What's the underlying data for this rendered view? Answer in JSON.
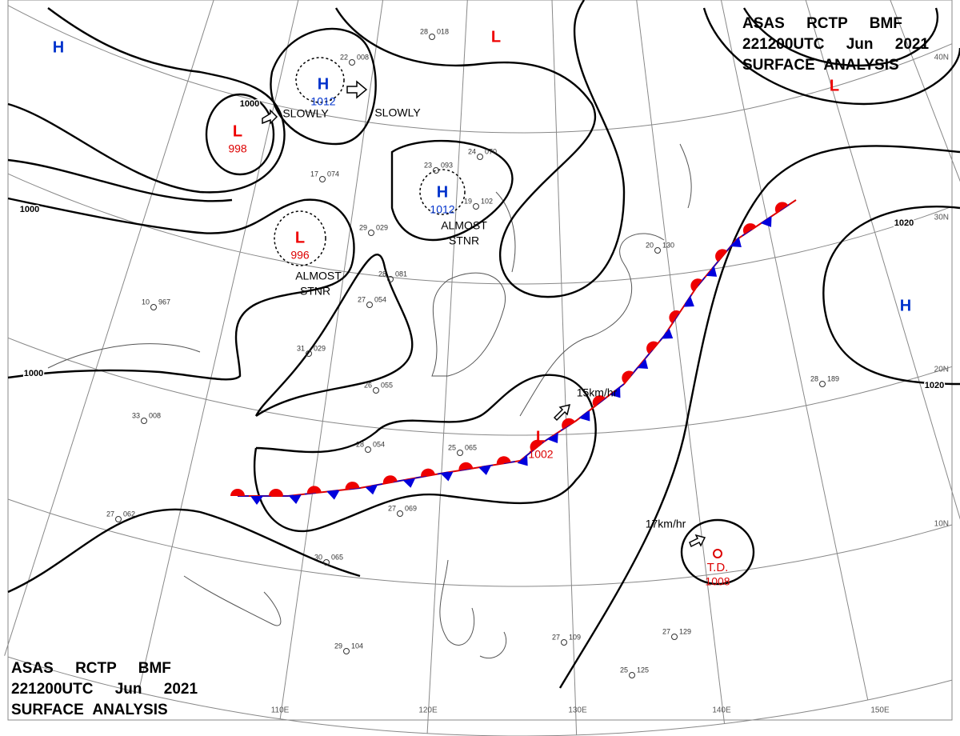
{
  "header_top": {
    "line1": "ASAS RCTP BMF",
    "line2": "221200UTC Jun 2021",
    "line3": "SURFACE ANALYSIS"
  },
  "header_bottom": {
    "line1": "ASAS RCTP BMF",
    "line2": "221200UTC Jun 2021",
    "line3": "SURFACE ANALYSIS"
  },
  "systems": [
    {
      "symbol": "H"
    },
    {
      "symbol": "L",
      "pressure": 998
    },
    {
      "symbol": "H",
      "pressure": 1012
    },
    {
      "symbol": "H",
      "pressure": 1012
    },
    {
      "symbol": "L",
      "pressure": 996
    },
    {
      "symbol": "L"
    },
    {
      "symbol": "L"
    },
    {
      "symbol": "H"
    },
    {
      "symbol": "L",
      "pressure": 1002
    },
    {
      "symbol": "T.D.",
      "pressure": 1008
    }
  ],
  "annotations": [
    "SLOWLY",
    "SLOWLY",
    "ALMOST",
    "STNR",
    "ALMOST",
    "STNR",
    "15km/hr",
    "17km/hr"
  ],
  "isobar_labels": [
    1000,
    1000,
    1000,
    1020,
    1020
  ],
  "latitudes": [
    "40N",
    "30N",
    "20N",
    "10N"
  ],
  "longitudes": [
    "110E",
    "120E",
    "130E",
    "140E",
    "150E"
  ],
  "stations": [
    {
      "temp": "28",
      "pres": "018"
    },
    {
      "temp": "22",
      "pres": "008"
    },
    {
      "temp": "24",
      "pres": "070"
    },
    {
      "temp": "23",
      "pres": "093"
    },
    {
      "temp": "19",
      "pres": "102"
    },
    {
      "temp": "17",
      "pres": "074"
    },
    {
      "temp": "29",
      "pres": "029"
    },
    {
      "temp": "28",
      "pres": "081"
    },
    {
      "temp": "27",
      "pres": "054"
    },
    {
      "temp": "31",
      "pres": "029"
    },
    {
      "temp": "26",
      "pres": "055"
    },
    {
      "temp": "28",
      "pres": "054"
    },
    {
      "temp": "25",
      "pres": "065"
    },
    {
      "temp": "27",
      "pres": "069"
    },
    {
      "temp": "30",
      "pres": "065"
    },
    {
      "temp": "27",
      "pres": "062"
    },
    {
      "temp": "33",
      "pres": "008"
    },
    {
      "temp": "10",
      "pres": "967"
    },
    {
      "temp": "20",
      "pres": "130"
    },
    {
      "temp": "28",
      "pres": "189"
    },
    {
      "temp": "27",
      "pres": "129"
    },
    {
      "temp": "25",
      "pres": "125"
    },
    {
      "temp": "27",
      "pres": "109"
    },
    {
      "temp": "29",
      "pres": "104"
    }
  ]
}
